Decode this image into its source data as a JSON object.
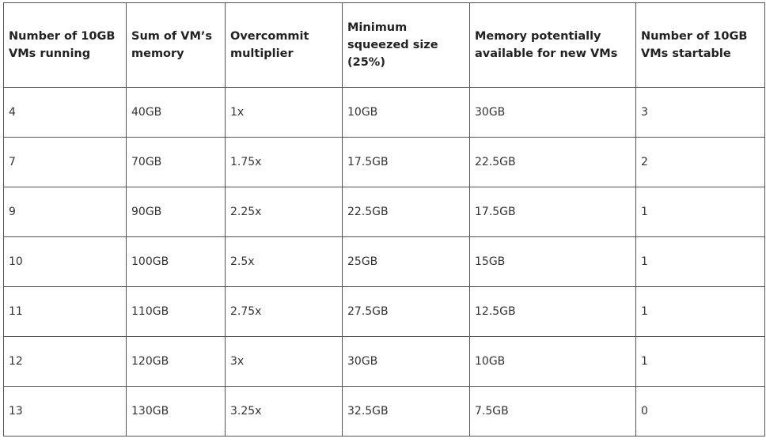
{
  "table": {
    "header": [
      "Number of 10GB VMs running",
      "Sum of VM’s memory",
      "Overcommit multiplier",
      "Minimum squeezed size (25%)",
      "Memory potentially available for new VMs",
      "Number of 10GB VMs startable"
    ],
    "rows": [
      [
        "4",
        "40GB",
        "1x",
        "10GB",
        "30GB",
        "3"
      ],
      [
        "7",
        "70GB",
        "1.75x",
        "17.5GB",
        "22.5GB",
        "2"
      ],
      [
        "9",
        "90GB",
        "2.25x",
        "22.5GB",
        "17.5GB",
        "1"
      ],
      [
        "10",
        "100GB",
        "2.5x",
        "25GB",
        "15GB",
        "1"
      ],
      [
        "11",
        "110GB",
        "2.75x",
        "27.5GB",
        "12.5GB",
        "1"
      ],
      [
        "12",
        "120GB",
        "3x",
        "30GB",
        "10GB",
        "1"
      ],
      [
        "13",
        "130GB",
        "3.25x",
        "32.5GB",
        "7.5GB",
        "0"
      ]
    ]
  }
}
